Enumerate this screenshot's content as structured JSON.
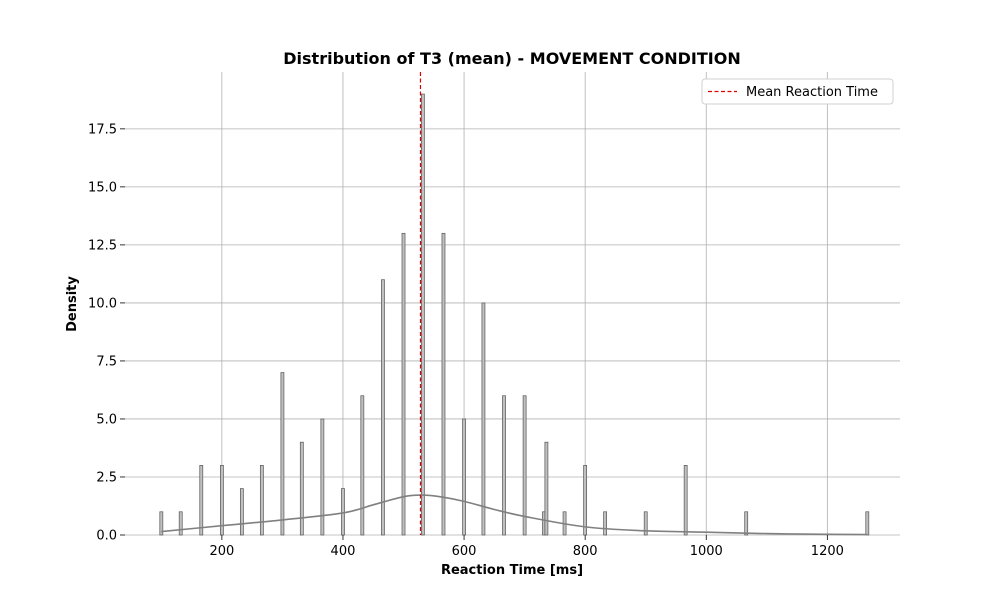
{
  "chart_data": {
    "type": "bar",
    "title": "Distribution of T3 (mean) - MOVEMENT CONDITION",
    "xlabel": "Reaction Time [ms]",
    "ylabel": "Density",
    "xlim": [
      40,
      1320
    ],
    "ylim": [
      0,
      19.95
    ],
    "xticks": [
      200,
      400,
      600,
      800,
      1000,
      1200
    ],
    "yticks": [
      0,
      2.5,
      5,
      7.5,
      10,
      12.5,
      15,
      17.5
    ],
    "ytick_labels": [
      "0.0",
      "2.5",
      "5.0",
      "7.5",
      "10.0",
      "12.5",
      "15.0",
      "17.5"
    ],
    "grid": true,
    "bar_width": 5,
    "bars": [
      {
        "x": 100,
        "y": 1
      },
      {
        "x": 132,
        "y": 1
      },
      {
        "x": 166,
        "y": 3
      },
      {
        "x": 200,
        "y": 3
      },
      {
        "x": 233,
        "y": 2
      },
      {
        "x": 266,
        "y": 3
      },
      {
        "x": 300,
        "y": 7
      },
      {
        "x": 332,
        "y": 4
      },
      {
        "x": 366,
        "y": 5
      },
      {
        "x": 400,
        "y": 2
      },
      {
        "x": 432,
        "y": 6
      },
      {
        "x": 466,
        "y": 11
      },
      {
        "x": 500,
        "y": 13
      },
      {
        "x": 532,
        "y": 19
      },
      {
        "x": 566,
        "y": 13
      },
      {
        "x": 600,
        "y": 5
      },
      {
        "x": 632,
        "y": 10
      },
      {
        "x": 666,
        "y": 6
      },
      {
        "x": 700,
        "y": 6
      },
      {
        "x": 732,
        "y": 1
      },
      {
        "x": 736,
        "y": 4
      },
      {
        "x": 766,
        "y": 1
      },
      {
        "x": 800,
        "y": 3
      },
      {
        "x": 833,
        "y": 1
      },
      {
        "x": 900,
        "y": 1
      },
      {
        "x": 966,
        "y": 3
      },
      {
        "x": 1066,
        "y": 1
      },
      {
        "x": 1266,
        "y": 1
      }
    ],
    "kde": {
      "x": [
        100,
        200,
        300,
        400,
        450,
        500,
        530,
        560,
        600,
        650,
        700,
        800,
        900,
        1000,
        1100,
        1200,
        1266
      ],
      "y": [
        0.15,
        0.4,
        0.65,
        0.95,
        1.3,
        1.65,
        1.72,
        1.65,
        1.45,
        1.1,
        0.8,
        0.35,
        0.18,
        0.12,
        0.06,
        0.03,
        0.02
      ]
    },
    "mean_line": {
      "x": 528,
      "label": "Mean Reaction Time",
      "color": "#dd0000"
    },
    "legend_position": "top-right",
    "colors": {
      "bar_fill": "#c0c0c0",
      "bar_edge": "#555555",
      "kde": "#808080",
      "grid": "#b0b0b0"
    }
  }
}
